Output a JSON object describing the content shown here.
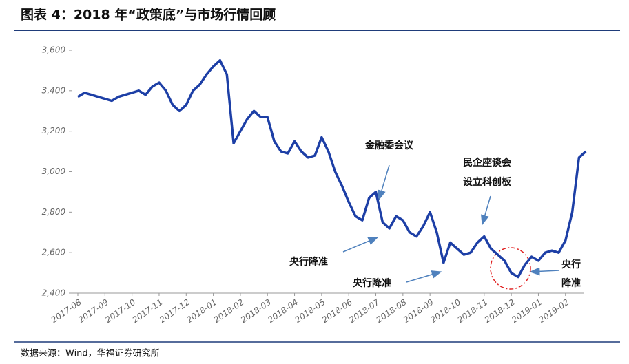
{
  "chart_data": {
    "type": "line",
    "title": "图表 4：2018 年“政策底”与市场行情回顾",
    "source": "数据来源：Wind，华福证券研究所",
    "categories": [
      "2017-08",
      null,
      null,
      null,
      "2017-09",
      null,
      null,
      null,
      "2017-10",
      null,
      null,
      null,
      "2017-11",
      null,
      null,
      null,
      "2017-12",
      null,
      null,
      null,
      "2018-01",
      null,
      null,
      null,
      "2018-02",
      null,
      null,
      null,
      "2018-03",
      null,
      null,
      null,
      "2018-04",
      null,
      null,
      null,
      "2018-05",
      null,
      null,
      null,
      "2018-06",
      null,
      null,
      null,
      "2018-07",
      null,
      null,
      null,
      "2018-08",
      null,
      null,
      null,
      "2018-09",
      null,
      null,
      null,
      "2018-10",
      null,
      null,
      null,
      "2018-11",
      null,
      null,
      null,
      "2018-12",
      null,
      null,
      null,
      "2019-01",
      null,
      null,
      null,
      "2019-02",
      null,
      null,
      null
    ],
    "series": [
      {
        "color": "#1d3fa6",
        "values": [
          3370,
          3390,
          3380,
          3370,
          3360,
          3350,
          3370,
          3380,
          3390,
          3400,
          3380,
          3420,
          3440,
          3400,
          3330,
          3300,
          3330,
          3400,
          3430,
          3480,
          3520,
          3550,
          3480,
          3140,
          3200,
          3260,
          3300,
          3270,
          3270,
          3150,
          3100,
          3090,
          3150,
          3100,
          3070,
          3080,
          3170,
          3100,
          3000,
          2930,
          2850,
          2780,
          2760,
          2870,
          2900,
          2750,
          2720,
          2780,
          2760,
          2700,
          2680,
          2730,
          2800,
          2700,
          2550,
          2650,
          2620,
          2590,
          2600,
          2650,
          2680,
          2620,
          2590,
          2560,
          2500,
          2480,
          2540,
          2580,
          2560,
          2600,
          2610,
          2600,
          2660,
          2800,
          3070,
          3100
        ]
      }
    ],
    "ylim": [
      2400,
      3600
    ],
    "yticks": [
      {
        "value": 2400,
        "label": "2,400"
      },
      {
        "value": 2600,
        "label": "2,600"
      },
      {
        "value": 2800,
        "label": "2,800"
      },
      {
        "value": 3000,
        "label": "3,000"
      },
      {
        "value": 3200,
        "label": "3,200"
      },
      {
        "value": 3400,
        "label": "3,400"
      },
      {
        "value": 3600,
        "label": "3,600"
      }
    ],
    "annotations": [
      {
        "text": "金融委会议"
      },
      {
        "lines": [
          "民企座谈会",
          "设立科创板"
        ]
      },
      {
        "text": "央行降准"
      },
      {
        "text": "央行降准"
      },
      {
        "lines": [
          "央行",
          "降准"
        ]
      }
    ]
  }
}
